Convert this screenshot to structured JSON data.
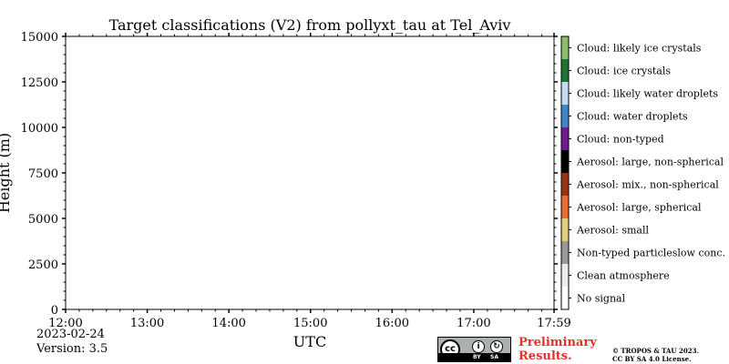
{
  "chart_data": {
    "type": "heatmap",
    "title": "Target classifications (V2) from pollyxt_tau at Tel_Aviv",
    "xlabel": "UTC",
    "ylabel": "Height (m)",
    "x_range": [
      "12:00",
      "17:59"
    ],
    "x_tick_labels": [
      "12:00",
      "13:00",
      "14:00",
      "15:00",
      "16:00",
      "17:00",
      "17:59"
    ],
    "x_tick_values": [
      0,
      60,
      120,
      180,
      240,
      300,
      359
    ],
    "ylim": [
      0,
      15000
    ],
    "y_ticks": [
      0,
      2500,
      5000,
      7500,
      10000,
      12500,
      15000
    ],
    "values": [],
    "colorbar": {
      "categories": [
        {
          "label": "No signal",
          "color": "#ffffff"
        },
        {
          "label": "Clean atmosphere",
          "color": "#ececec"
        },
        {
          "label": "Non-typed particleslow conc.",
          "color": "#999999"
        },
        {
          "label": "Aerosol: small",
          "color": "#e0cc7c"
        },
        {
          "label": "Aerosol: large, spherical",
          "color": "#ea6e33"
        },
        {
          "label": "Aerosol: mix., non-spherical",
          "color": "#963414"
        },
        {
          "label": "Aerosol: large, non-spherical",
          "color": "#000000"
        },
        {
          "label": "Cloud: non-typed",
          "color": "#711c8c"
        },
        {
          "label": "Cloud: water droplets",
          "color": "#3f86c7"
        },
        {
          "label": "Cloud: likely water droplets",
          "color": "#c4dcf2"
        },
        {
          "label": "Cloud: ice crystals",
          "color": "#1f7332"
        },
        {
          "label": "Cloud: likely ice crystals",
          "color": "#8bbd6b"
        }
      ]
    }
  },
  "footer": {
    "date": "2023-02-24",
    "version": "Version: 3.5",
    "preliminary_line1": "Preliminary",
    "preliminary_line2": "Results.",
    "copyright_line1": "© TROPOS & TAU 2023.",
    "copyright_line2": "CC BY SA 4.0 License.",
    "cc_badge": {
      "cc": "cc",
      "by": "BY",
      "sa": "SA"
    }
  }
}
